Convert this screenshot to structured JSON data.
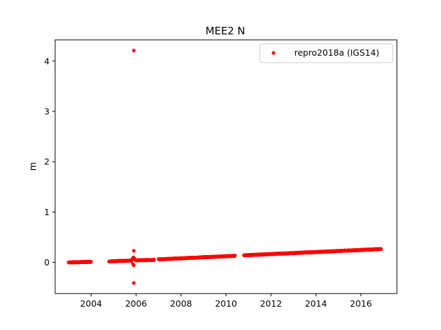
{
  "chart_data": {
    "type": "scatter",
    "title": "MEE2 N",
    "xlabel": "",
    "ylabel": "m",
    "xlim": [
      2002.4,
      2017.6
    ],
    "ylim": [
      -0.62,
      4.42
    ],
    "xticks": [
      2004,
      2006,
      2008,
      2010,
      2012,
      2014,
      2016
    ],
    "yticks": [
      0,
      1,
      2,
      3,
      4
    ],
    "grid": false,
    "legend_position": "top-right",
    "series": [
      {
        "name": "repro2018a (IGS14)",
        "color": "#ff0000",
        "marker": "dot",
        "segments": [
          {
            "x_start": 2003.0,
            "x_end": 2004.0,
            "y_start": 0.0,
            "y_end": 0.01
          },
          {
            "x_start": 2004.8,
            "x_end": 2005.8,
            "y_start": 0.02,
            "y_end": 0.035
          },
          {
            "x_start": 2006.0,
            "x_end": 2006.8,
            "y_start": 0.04,
            "y_end": 0.05
          },
          {
            "x_start": 2007.0,
            "x_end": 2010.4,
            "y_start": 0.06,
            "y_end": 0.13
          },
          {
            "x_start": 2010.8,
            "x_end": 2016.9,
            "y_start": 0.14,
            "y_end": 0.265
          }
        ],
        "outliers": [
          {
            "x": 2005.9,
            "y": 4.21
          },
          {
            "x": 2005.9,
            "y": 0.23
          },
          {
            "x": 2005.9,
            "y": -0.41
          },
          {
            "x": 2005.88,
            "y": 0.1
          },
          {
            "x": 2005.92,
            "y": 0.08
          },
          {
            "x": 2005.86,
            "y": -0.03
          },
          {
            "x": 2005.9,
            "y": -0.06
          },
          {
            "x": 2005.94,
            "y": 0.06
          },
          {
            "x": 2005.84,
            "y": 0.07
          }
        ]
      }
    ]
  }
}
